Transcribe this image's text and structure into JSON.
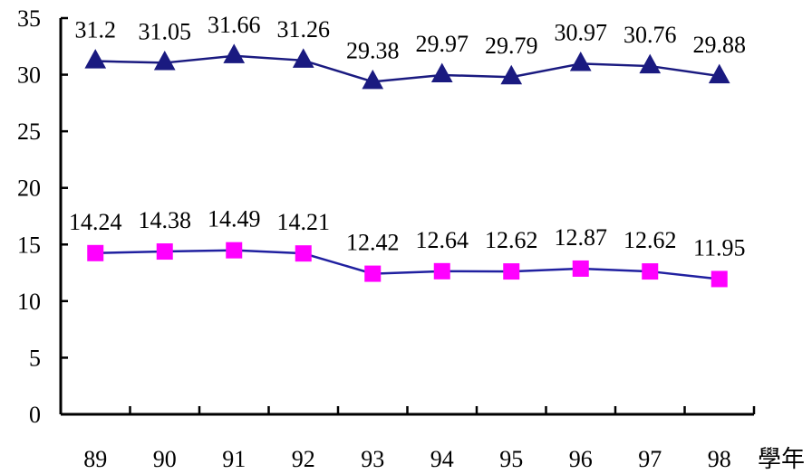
{
  "chart_data": {
    "type": "line",
    "categories": [
      "89",
      "90",
      "91",
      "92",
      "93",
      "94",
      "95",
      "96",
      "97",
      "98"
    ],
    "x_unit_label": "學年",
    "ylim": [
      0,
      35
    ],
    "yticks": [
      0,
      5,
      10,
      15,
      20,
      25,
      30,
      35
    ],
    "grid": false,
    "series": [
      {
        "values": [
          31.2,
          31.05,
          31.66,
          31.26,
          29.38,
          29.97,
          29.79,
          30.97,
          30.76,
          29.88
        ],
        "labels": [
          "31.2",
          "31.05",
          "31.66",
          "31.26",
          "29.38",
          "29.97",
          "29.79",
          "30.97",
          "30.76",
          "29.88"
        ],
        "line_color": "#1a1a80",
        "marker": "triangle",
        "marker_color": "#1a1a80"
      },
      {
        "values": [
          14.24,
          14.38,
          14.49,
          14.21,
          12.42,
          12.64,
          12.62,
          12.87,
          12.62,
          11.95
        ],
        "labels": [
          "14.24",
          "14.38",
          "14.49",
          "14.21",
          "12.42",
          "12.64",
          "12.62",
          "12.87",
          "12.62",
          "11.95"
        ],
        "line_color": "#2020a0",
        "marker": "square",
        "marker_color": "#ff00ff"
      }
    ]
  }
}
